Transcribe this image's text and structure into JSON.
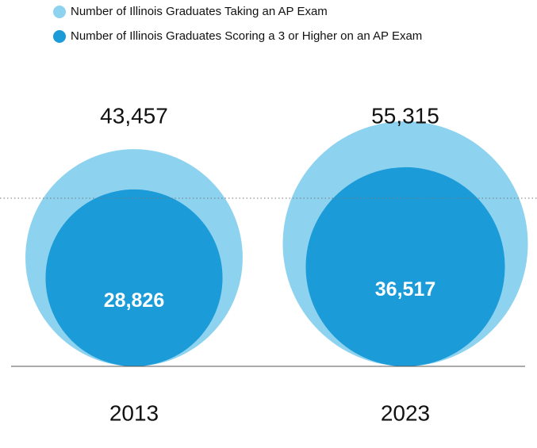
{
  "chart_data": {
    "type": "bubble",
    "categories": [
      "2013",
      "2023"
    ],
    "series": [
      {
        "name": "Number of Illinois Graduates Taking an AP Exam",
        "color": "#8dd2ef",
        "values": [
          43457,
          55315
        ],
        "value_labels": [
          "43,457",
          "55,315"
        ]
      },
      {
        "name": "Number of Illinois Graduates Scoring a 3 or Higher on an AP Exam",
        "color": "#1b9bd7",
        "values": [
          28826,
          36517
        ],
        "value_labels": [
          "28,826",
          "36,517"
        ]
      }
    ]
  }
}
